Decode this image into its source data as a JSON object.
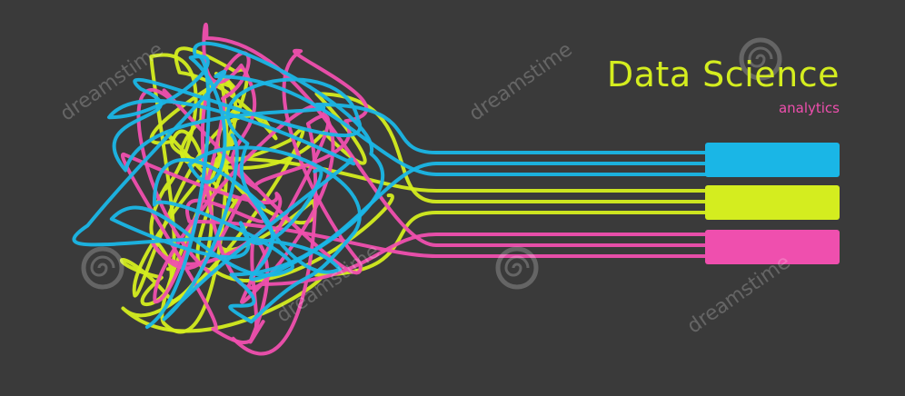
{
  "title": "Data Science",
  "subtitle": "analytics",
  "watermark": "dreamstime",
  "colors": {
    "background": "#3a3a3a",
    "cyan": "#1ab6e6",
    "lime": "#d4ed1f",
    "pink": "#ef4fae"
  },
  "icons": {
    "watermark_mark": "spiral-logo-icon"
  }
}
